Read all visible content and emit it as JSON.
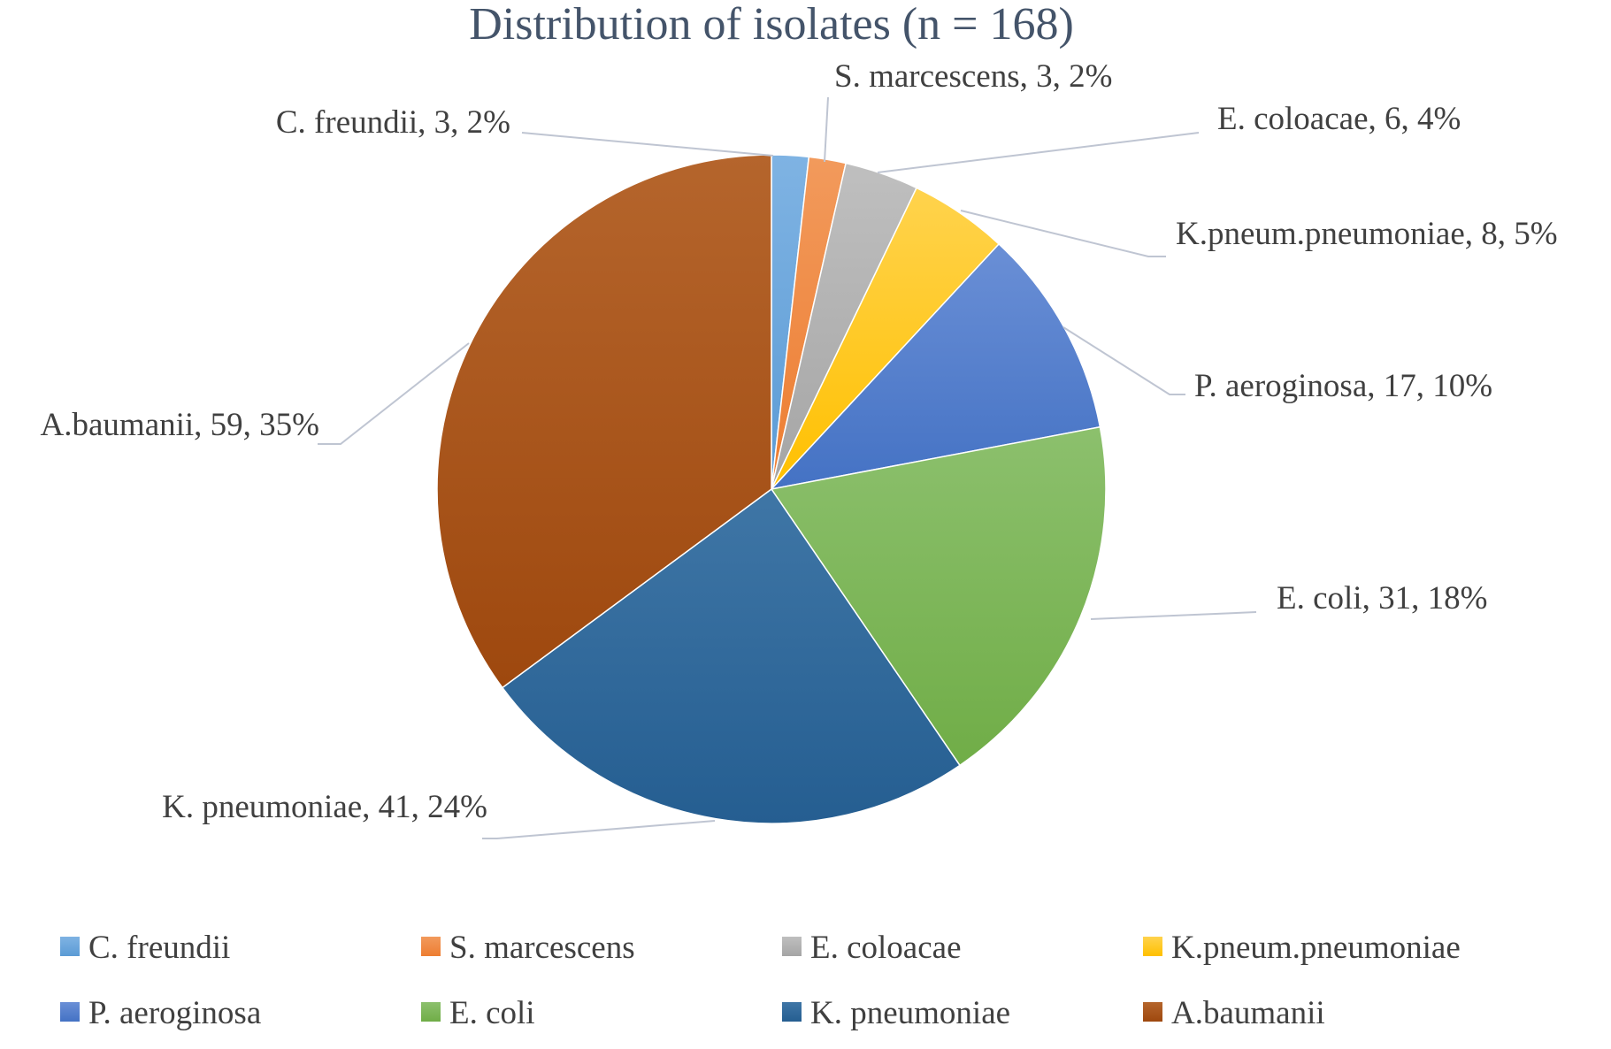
{
  "chart_data": {
    "type": "pie",
    "title": "Distribution of isolates (n = 168)",
    "categories": [
      "C. freundii",
      "S. marcescens",
      "E. coloacae",
      "K.pneum.pneumoniae",
      "P. aeroginosa",
      "E. coli",
      "K. pneumoniae",
      "A.baumanii"
    ],
    "values": [
      3,
      3,
      6,
      8,
      17,
      31,
      41,
      59
    ],
    "percent_labels": [
      "2%",
      "2%",
      "4%",
      "5%",
      "10%",
      "18%",
      "24%",
      "35%"
    ],
    "data_labels": [
      "C. freundii, 3, 2%",
      "S. marcescens, 3, 2%",
      "E. coloacae, 6, 4%",
      "K.pneum.pneumoniae, 8, 5%",
      "P. aeroginosa, 17, 10%",
      "E. coli, 31, 18%",
      "K. pneumoniae, 41, 24%",
      "A.baumanii, 59, 35%"
    ],
    "colors": [
      "#5b9bd5",
      "#ed7d31",
      "#a5a5a5",
      "#ffc000",
      "#4472c4",
      "#70ad47",
      "#255e91",
      "#9e480e"
    ],
    "colors_light": [
      "#7fb3e3",
      "#f29a5c",
      "#bfbfbf",
      "#ffd34d",
      "#6a8fd6",
      "#8cc06d",
      "#3f76a6",
      "#b5652c"
    ],
    "title_color": "#44546a",
    "label_color": "#404040",
    "leader_line_color": "#bfc5d2",
    "legend": {
      "position": "bottom",
      "columns": 4
    },
    "start_angle_deg": 0,
    "direction": "clockwise"
  }
}
